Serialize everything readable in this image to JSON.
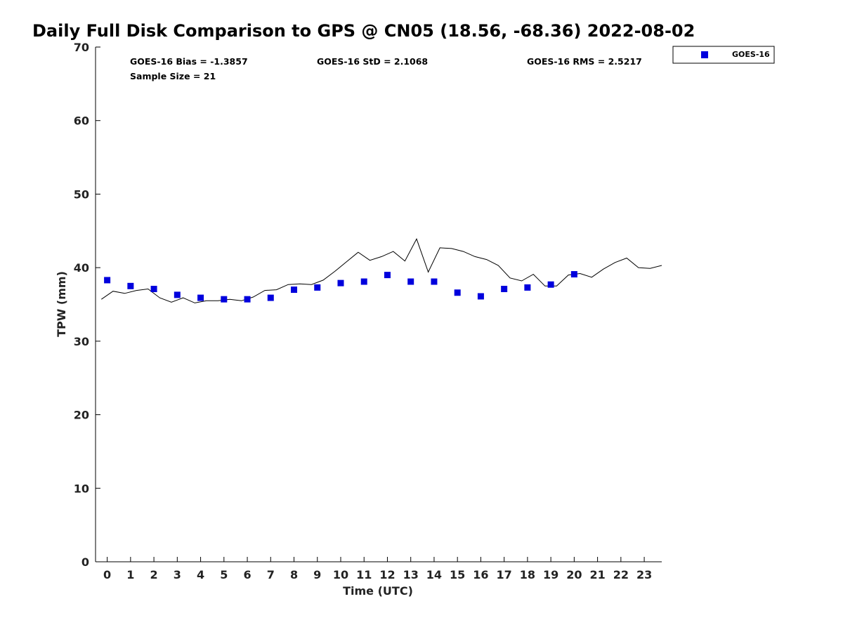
{
  "chart_data": {
    "type": "scatter",
    "title": "Daily Full Disk Comparison to GPS @ CN05 (18.56, -68.36) 2022-08-02",
    "xlabel": "Time (UTC)",
    "ylabel": "TPW (mm)",
    "xlim": [
      -0.5,
      23.75
    ],
    "ylim": [
      0,
      70
    ],
    "x_ticks": [
      0,
      1,
      2,
      3,
      4,
      5,
      6,
      7,
      8,
      9,
      10,
      11,
      12,
      13,
      14,
      15,
      16,
      17,
      18,
      19,
      20,
      21,
      22,
      23
    ],
    "y_ticks": [
      0,
      10,
      20,
      30,
      40,
      50,
      60,
      70
    ],
    "grid": false,
    "legend_position": "top-right",
    "stats": {
      "bias": "GOES-16 Bias = -1.3857",
      "std": "GOES-16 StD = 2.1068",
      "rms": "GOES-16 RMS = 2.5217",
      "sample": "Sample Size = 21"
    },
    "series": [
      {
        "name": "GOES-16",
        "kind": "scatter",
        "marker": "square",
        "color": "#0000dd",
        "x": [
          0,
          1,
          2,
          3,
          4,
          5,
          6,
          7,
          8,
          9,
          10,
          11,
          12,
          13,
          14,
          15,
          16,
          17,
          18,
          19,
          20
        ],
        "y": [
          38.3,
          37.5,
          37.1,
          36.3,
          35.9,
          35.7,
          35.7,
          35.9,
          37.0,
          37.3,
          37.9,
          38.1,
          39.0,
          38.1,
          38.1,
          36.6,
          36.1,
          37.1,
          37.3,
          37.7,
          39.1
        ]
      },
      {
        "kind": "line",
        "color": "#000000",
        "x": [
          -0.25,
          0.25,
          0.75,
          1.25,
          1.75,
          2.25,
          2.75,
          3.25,
          3.75,
          4.25,
          4.75,
          5.25,
          5.75,
          6.25,
          6.75,
          7.25,
          7.75,
          8.25,
          8.75,
          9.25,
          9.75,
          10.25,
          10.75,
          11.25,
          11.75,
          12.25,
          12.75,
          13.25,
          13.75,
          14.25,
          14.75,
          15.25,
          15.75,
          16.25,
          16.75,
          17.25,
          17.75,
          18.25,
          18.75,
          19.25,
          19.75,
          20.25,
          20.75,
          21.25,
          21.75,
          22.25,
          22.75,
          23.25,
          23.75
        ],
        "y": [
          35.7,
          36.8,
          36.5,
          36.9,
          37.1,
          35.9,
          35.3,
          35.9,
          35.2,
          35.5,
          35.5,
          35.7,
          35.5,
          36.0,
          36.9,
          37.0,
          37.7,
          37.8,
          37.7,
          38.3,
          39.5,
          40.8,
          42.1,
          41.0,
          41.5,
          42.2,
          40.9,
          43.9,
          39.4,
          42.7,
          42.6,
          42.2,
          41.5,
          41.1,
          40.3,
          38.6,
          38.2,
          39.1,
          37.5,
          37.5,
          39.0,
          39.2,
          38.7,
          39.8,
          40.7,
          41.3,
          40.0,
          39.9,
          40.3
        ]
      }
    ]
  }
}
